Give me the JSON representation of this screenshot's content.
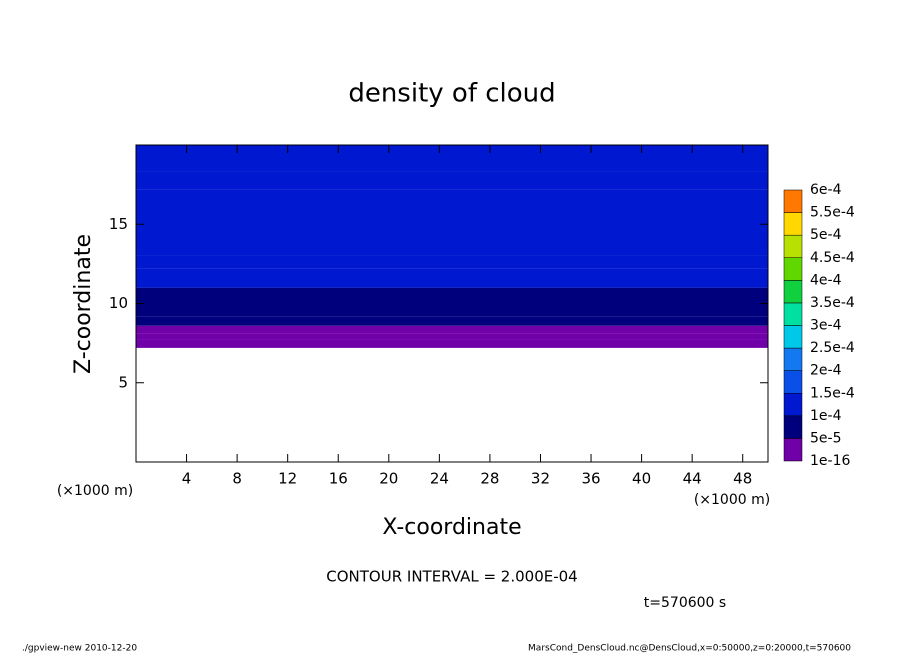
{
  "chart_data": {
    "type": "contour",
    "title": "density of cloud",
    "x_label": "X-coordinate",
    "y_label": "Z-coordinate",
    "x_unit": "(×1000 m)",
    "xlim": [
      0,
      50
    ],
    "xticks": [
      4,
      8,
      12,
      16,
      20,
      24,
      28,
      32,
      36,
      40,
      44,
      48
    ],
    "ylim": [
      0,
      20
    ],
    "yticks": [
      5,
      10,
      15
    ],
    "levels": [
      {
        "value": 1e-16,
        "label": "1e-16"
      },
      {
        "value": 5e-05,
        "label": "5e-5"
      },
      {
        "value": 0.0001,
        "label": "1e-4"
      },
      {
        "value": 0.00015,
        "label": "1.5e-4"
      },
      {
        "value": 0.0002,
        "label": "2e-4"
      },
      {
        "value": 0.00025,
        "label": "2.5e-4"
      },
      {
        "value": 0.0003,
        "label": "3e-4"
      },
      {
        "value": 0.00035,
        "label": "3.5e-4"
      },
      {
        "value": 0.0004,
        "label": "4e-4"
      },
      {
        "value": 0.00045,
        "label": "4.5e-4"
      },
      {
        "value": 0.0005,
        "label": "5e-4"
      },
      {
        "value": 0.00055,
        "label": "5.5e-4"
      },
      {
        "value": 0.0006,
        "label": "6e-4"
      }
    ],
    "colors": [
      "#7000a8",
      "#00007c",
      "#0018d0",
      "#0a50e8",
      "#1478f0",
      "#00c8e8",
      "#00e0a0",
      "#10d040",
      "#60d800",
      "#b8e000",
      "#ffd800",
      "#ff7800",
      "#ff2000",
      "#ff8080"
    ],
    "field": {
      "z_edges": [
        7.2,
        7.7,
        8.1,
        8.6,
        9.2,
        10.0,
        11.0,
        12.2,
        13.0,
        17.2,
        18.3,
        20
      ],
      "values": [
        2e-05,
        3e-05,
        4e-05,
        6e-05,
        8e-05,
        9e-05,
        0.000105,
        0.00012,
        0.00013,
        0.00012,
        0.00011
      ]
    },
    "annotations": [
      "CONTOUR INTERVAL = 2.000E-04",
      "t=570600 s",
      "./gpview-new   2010-12-20",
      "MarsCond_DensCloud.nc@DensCloud,x=0:50000,z=0:20000,t=570600"
    ]
  }
}
